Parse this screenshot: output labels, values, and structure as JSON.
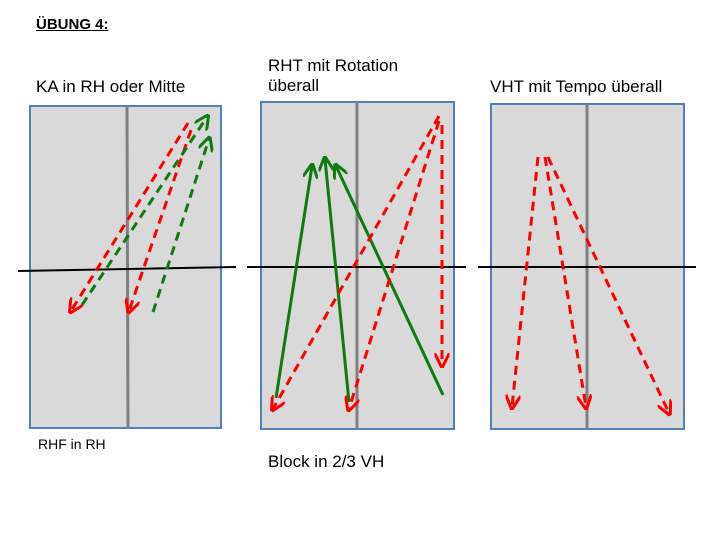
{
  "title": "ÜBUNG 4:",
  "panels": [
    {
      "title": "KA in RH oder Mitte",
      "note": "RHF in RH"
    },
    {
      "title": "RHT mit Rotation\nüberall",
      "note": "Block in 2/3 VH"
    },
    {
      "title": "VHT mit Tempo überall",
      "note": ""
    }
  ],
  "colors": {
    "court_fill": "#d9d9d9",
    "court_border": "#4f81bd",
    "center_line": "#7f7f7f",
    "net_line": "#000000",
    "red_arrow": "#ff0000",
    "green_arrow": "#0f7a0f"
  }
}
